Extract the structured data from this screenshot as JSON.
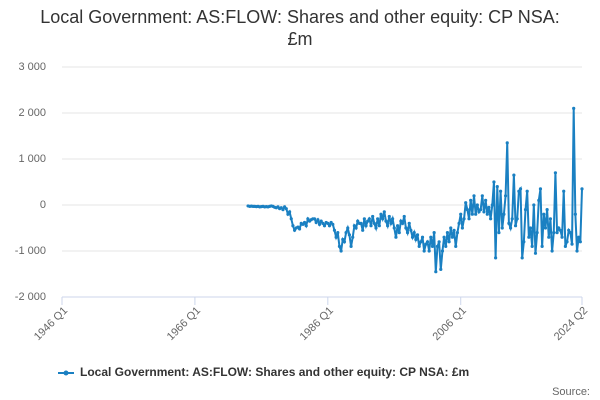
{
  "chart_data": {
    "type": "line",
    "title": "Local Government: AS:FLOW: Shares and other equity: CP NSA: £m",
    "source": "Source:",
    "xlim": [
      "1946 Q1",
      "2024 Q2"
    ],
    "xticks": [
      "1946 Q1",
      "1966 Q1",
      "1986 Q1",
      "2006 Q1",
      "2024 Q2"
    ],
    "ylim": [
      -2000,
      3000
    ],
    "yticks": [
      {
        "value": -2000,
        "label": "-2 000"
      },
      {
        "value": -1000,
        "label": "-1 000"
      },
      0,
      {
        "value": 1000,
        "label": "1 000"
      },
      {
        "value": 2000,
        "label": "2 000"
      },
      {
        "value": 3000,
        "label": "3 000"
      }
    ],
    "grid": true,
    "legend": "bottom",
    "x": [
      "1974 Q1",
      "1974 Q2",
      "1974 Q3",
      "1974 Q4",
      "1975 Q1",
      "1975 Q2",
      "1975 Q3",
      "1975 Q4",
      "1976 Q1",
      "1976 Q2",
      "1976 Q3",
      "1976 Q4",
      "1977 Q1",
      "1977 Q2",
      "1977 Q3",
      "1977 Q4",
      "1978 Q1",
      "1978 Q2",
      "1978 Q3",
      "1978 Q4",
      "1979 Q1",
      "1979 Q2",
      "1979 Q3",
      "1979 Q4",
      "1980 Q1",
      "1980 Q2",
      "1980 Q3",
      "1980 Q4",
      "1981 Q1",
      "1981 Q2",
      "1981 Q3",
      "1981 Q4",
      "1982 Q1",
      "1982 Q2",
      "1982 Q3",
      "1982 Q4",
      "1983 Q1",
      "1983 Q2",
      "1983 Q3",
      "1983 Q4",
      "1984 Q1",
      "1984 Q2",
      "1984 Q3",
      "1984 Q4",
      "1985 Q1",
      "1985 Q2",
      "1985 Q3",
      "1985 Q4",
      "1986 Q1",
      "1986 Q2",
      "1986 Q3",
      "1986 Q4",
      "1987 Q1",
      "1987 Q2",
      "1987 Q3",
      "1987 Q4",
      "1988 Q1",
      "1988 Q2",
      "1988 Q3",
      "1988 Q4",
      "1989 Q1",
      "1989 Q2",
      "1989 Q3",
      "1989 Q4",
      "1990 Q1",
      "1990 Q2",
      "1990 Q3",
      "1990 Q4",
      "1991 Q1",
      "1991 Q2",
      "1991 Q3",
      "1991 Q4",
      "1992 Q1",
      "1992 Q2",
      "1992 Q3",
      "1992 Q4",
      "1993 Q1",
      "1993 Q2",
      "1993 Q3",
      "1993 Q4",
      "1994 Q1",
      "1994 Q2",
      "1994 Q3",
      "1994 Q4",
      "1995 Q1",
      "1995 Q2",
      "1995 Q3",
      "1995 Q4",
      "1996 Q1",
      "1996 Q2",
      "1996 Q3",
      "1996 Q4",
      "1997 Q1",
      "1997 Q2",
      "1997 Q3",
      "1997 Q4",
      "1998 Q1",
      "1998 Q2",
      "1998 Q3",
      "1998 Q4",
      "1999 Q1",
      "1999 Q2",
      "1999 Q3",
      "1999 Q4",
      "2000 Q1",
      "2000 Q2",
      "2000 Q3",
      "2000 Q4",
      "2001 Q1",
      "2001 Q2",
      "2001 Q3",
      "2001 Q4",
      "2002 Q1",
      "2002 Q2",
      "2002 Q3",
      "2002 Q4",
      "2003 Q1",
      "2003 Q2",
      "2003 Q3",
      "2003 Q4",
      "2004 Q1",
      "2004 Q2",
      "2004 Q3",
      "2004 Q4",
      "2005 Q1",
      "2005 Q2",
      "2005 Q3",
      "2005 Q4",
      "2006 Q1",
      "2006 Q2",
      "2006 Q3",
      "2006 Q4",
      "2007 Q1",
      "2007 Q2",
      "2007 Q3",
      "2007 Q4",
      "2008 Q1",
      "2008 Q2",
      "2008 Q3",
      "2008 Q4",
      "2009 Q1",
      "2009 Q2",
      "2009 Q3",
      "2009 Q4",
      "2010 Q1",
      "2010 Q2",
      "2010 Q3",
      "2010 Q4",
      "2011 Q1",
      "2011 Q2",
      "2011 Q3",
      "2011 Q4",
      "2012 Q1",
      "2012 Q2",
      "2012 Q3",
      "2012 Q4",
      "2013 Q1",
      "2013 Q2",
      "2013 Q3",
      "2013 Q4",
      "2014 Q1",
      "2014 Q2",
      "2014 Q3",
      "2014 Q4",
      "2015 Q1",
      "2015 Q2",
      "2015 Q3",
      "2015 Q4",
      "2016 Q1",
      "2016 Q2",
      "2016 Q3",
      "2016 Q4",
      "2017 Q1",
      "2017 Q2",
      "2017 Q3",
      "2017 Q4",
      "2018 Q1",
      "2018 Q2",
      "2018 Q3",
      "2018 Q4",
      "2019 Q1",
      "2019 Q2",
      "2019 Q3",
      "2019 Q4",
      "2020 Q1",
      "2020 Q2",
      "2020 Q3",
      "2020 Q4",
      "2021 Q1",
      "2021 Q2",
      "2021 Q3",
      "2021 Q4",
      "2022 Q1",
      "2022 Q2",
      "2022 Q3",
      "2022 Q4",
      "2023 Q1",
      "2023 Q2",
      "2023 Q3",
      "2023 Q4",
      "2024 Q1",
      "2024 Q2"
    ],
    "series": [
      {
        "name": "Local Government: AS:FLOW: Shares and other equity: CP NSA: £m",
        "color": "#1a80c2",
        "values": [
          -20,
          -30,
          -25,
          -30,
          -30,
          -35,
          -30,
          -40,
          -35,
          -30,
          -40,
          -35,
          -40,
          -30,
          -20,
          -30,
          -50,
          -60,
          -40,
          -80,
          -60,
          -100,
          -40,
          -80,
          -200,
          -150,
          -300,
          -450,
          -550,
          -500,
          -480,
          -520,
          -400,
          -420,
          -380,
          -450,
          -300,
          -350,
          -320,
          -300,
          -300,
          -380,
          -320,
          -420,
          -350,
          -400,
          -450,
          -380,
          -400,
          -450,
          -380,
          -420,
          -550,
          -700,
          -600,
          -900,
          -1000,
          -750,
          -800,
          -600,
          -500,
          -650,
          -900,
          -700,
          -450,
          -500,
          -350,
          -400,
          -400,
          -550,
          -300,
          -450,
          -350,
          -300,
          -450,
          -250,
          -400,
          -500,
          -300,
          -450,
          -200,
          -300,
          -150,
          -350,
          -450,
          -250,
          -400,
          -300,
          -500,
          -700,
          -450,
          -600,
          -350,
          -400,
          -250,
          -500,
          -600,
          -400,
          -550,
          -700,
          -600,
          -750,
          -650,
          -900,
          -800,
          -700,
          -1000,
          -850,
          -800,
          -1000,
          -700,
          -900,
          -600,
          -1450,
          -900,
          -800,
          -1400,
          -1000,
          -700,
          -900,
          -600,
          -800,
          -500,
          -700,
          -550,
          -900,
          -600,
          -400,
          -200,
          -500,
          -300,
          50,
          -100,
          -300,
          100,
          -200,
          200,
          -200,
          0,
          -150,
          -100,
          200,
          -150,
          100,
          -200,
          -50,
          -300,
          0,
          500,
          -1150,
          400,
          -600,
          300,
          -500,
          -200,
          200,
          1350,
          -400,
          -500,
          -300,
          650,
          -450,
          -300,
          300,
          350,
          -1150,
          -800,
          -100,
          300,
          -700,
          -500,
          -900,
          0,
          -1050,
          -600,
          100,
          350,
          -900,
          -200,
          -500,
          -100,
          -700,
          -300,
          -1000,
          -600,
          700,
          -600,
          -500,
          -550,
          -700,
          300,
          -900,
          -800,
          -550,
          -600,
          -850,
          2100,
          -200,
          -1000,
          -700,
          -800,
          350
        ]
      }
    ]
  }
}
